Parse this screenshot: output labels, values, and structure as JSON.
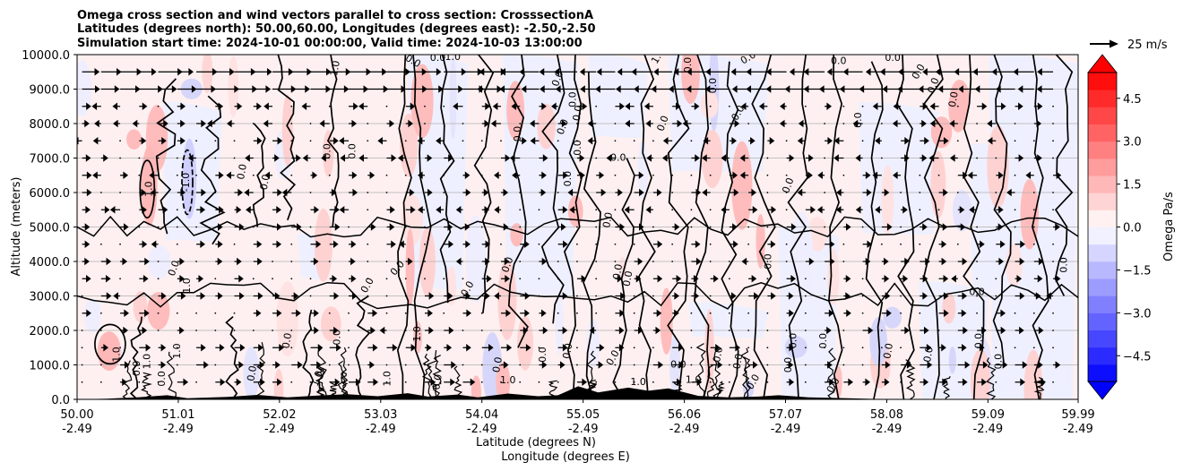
{
  "chart_data": {
    "type": "contour",
    "title_lines": [
      "Omega cross section and wind vectors parallel to cross section: CrosssectionA",
      "Latitudes (degrees north): 50.00,60.00, Longitudes (degrees east): -2.50,-2.50",
      "Simulation start time: 2024-10-01 00:00:00, Valid time: 2024-10-03 13:00:00"
    ],
    "ylabel": "Altitude (meters)",
    "xlabel_lines": [
      "Latitude (degrees N)",
      "Longitude (degrees E)"
    ],
    "ylim": [
      0,
      10000
    ],
    "yticks": [
      "0.0",
      "1000.0",
      "2000.0",
      "3000.0",
      "4000.0",
      "5000.0",
      "6000.0",
      "7000.0",
      "8000.0",
      "9000.0",
      "10000.0"
    ],
    "xlim": [
      50.0,
      59.99
    ],
    "xticks": [
      {
        "value": 50.0,
        "lat": "50.00",
        "lon": "-2.49"
      },
      {
        "value": 51.01,
        "lat": "51.01",
        "lon": "-2.49"
      },
      {
        "value": 52.02,
        "lat": "52.02",
        "lon": "-2.49"
      },
      {
        "value": 53.03,
        "lat": "53.03",
        "lon": "-2.49"
      },
      {
        "value": 54.04,
        "lat": "54.04",
        "lon": "-2.49"
      },
      {
        "value": 55.05,
        "lat": "55.05",
        "lon": "-2.49"
      },
      {
        "value": 56.06,
        "lat": "56.06",
        "lon": "-2.49"
      },
      {
        "value": 57.07,
        "lat": "57.07",
        "lon": "-2.49"
      },
      {
        "value": 58.08,
        "lat": "58.08",
        "lon": "-2.49"
      },
      {
        "value": 59.09,
        "lat": "59.09",
        "lon": "-2.49"
      },
      {
        "value": 59.99,
        "lat": "59.99",
        "lon": "-2.49"
      }
    ],
    "grid": "horizontal",
    "colorbar": {
      "label": "Omega Pa/s",
      "range": [
        -5.4,
        5.4
      ],
      "ticks": [
        "4.5",
        "3.0",
        "1.5",
        "0.0",
        "−1.5",
        "−3.0",
        "−4.5"
      ],
      "tick_values": [
        4.5,
        3.0,
        1.5,
        0.0,
        -1.5,
        -3.0,
        -4.5
      ],
      "extend": "both",
      "colormap": "bwr",
      "low_color": "#0000ff",
      "high_color": "#ff0000",
      "mid_color": "#ffffff"
    },
    "quiver_key": {
      "label": "25 m/s",
      "speed": 25
    },
    "contour_levels": [
      -1.0,
      0.0,
      1.0
    ],
    "contour_labels": [
      {
        "text": "1.0",
        "x": 50.72,
        "y": 6100,
        "rot": -90
      },
      {
        "text": "-1.0",
        "x": 51.09,
        "y": 6300,
        "rot": -90
      },
      {
        "text": "0.0",
        "x": 51.65,
        "y": 6600,
        "rot": -80
      },
      {
        "text": "0.0",
        "x": 51.88,
        "y": 6300,
        "rot": -80
      },
      {
        "text": "0.0",
        "x": 52.5,
        "y": 7200,
        "rot": -90
      },
      {
        "text": "0.0",
        "x": 52.75,
        "y": 7200,
        "rot": -90
      },
      {
        "text": "1.0",
        "x": 52.58,
        "y": 9600,
        "rot": -80
      },
      {
        "text": "0.0",
        "x": 53.35,
        "y": 9800,
        "rot": 30
      },
      {
        "text": "0.0",
        "x": 53.6,
        "y": 9900,
        "rot": 0
      },
      {
        "text": "1.0",
        "x": 53.75,
        "y": 9920,
        "rot": 0
      },
      {
        "text": "0.0",
        "x": 54.8,
        "y": 9300,
        "rot": -70
      },
      {
        "text": "0.0",
        "x": 54.95,
        "y": 8700,
        "rot": -90
      },
      {
        "text": "0.0",
        "x": 55.0,
        "y": 8300,
        "rot": -80
      },
      {
        "text": "0.0",
        "x": 54.85,
        "y": 7900,
        "rot": -70
      },
      {
        "text": "0.0",
        "x": 54.4,
        "y": 7700,
        "rot": -90
      },
      {
        "text": "0.0",
        "x": 55.4,
        "y": 7000,
        "rot": 0
      },
      {
        "text": "0.0",
        "x": 55.0,
        "y": 7300,
        "rot": -90
      },
      {
        "text": "0.0",
        "x": 54.9,
        "y": 6400,
        "rot": -90
      },
      {
        "text": "0.0",
        "x": 55.3,
        "y": 5200,
        "rot": -80
      },
      {
        "text": "0.0",
        "x": 56.1,
        "y": 9700,
        "rot": -90
      },
      {
        "text": "1.0",
        "x": 55.8,
        "y": 9950,
        "rot": -60
      },
      {
        "text": "0.0",
        "x": 56.35,
        "y": 9100,
        "rot": -90
      },
      {
        "text": "0.0",
        "x": 56.6,
        "y": 8300,
        "rot": -60
      },
      {
        "text": "0.0",
        "x": 55.85,
        "y": 8000,
        "rot": -70
      },
      {
        "text": "0.0",
        "x": 56.7,
        "y": 9900,
        "rot": -30
      },
      {
        "text": "0.0",
        "x": 57.6,
        "y": 9800,
        "rot": 0
      },
      {
        "text": "0.0",
        "x": 58.14,
        "y": 9900,
        "rot": 0
      },
      {
        "text": "0.0",
        "x": 58.4,
        "y": 9500,
        "rot": -60
      },
      {
        "text": "0.0",
        "x": 58.55,
        "y": 9100,
        "rot": -70
      },
      {
        "text": "0.0",
        "x": 58.75,
        "y": 8700,
        "rot": -80
      },
      {
        "text": "0.0",
        "x": 57.8,
        "y": 8100,
        "rot": -90
      },
      {
        "text": "0.0",
        "x": 57.1,
        "y": 6200,
        "rot": -70
      },
      {
        "text": "0.0",
        "x": 58.98,
        "y": 3100,
        "rot": 0
      },
      {
        "text": "0.0",
        "x": 56.9,
        "y": 4000,
        "rot": -90
      },
      {
        "text": "0.0",
        "x": 54.3,
        "y": 3900,
        "rot": -70
      },
      {
        "text": "0.0",
        "x": 53.9,
        "y": 3200,
        "rot": -60
      },
      {
        "text": "0.0",
        "x": 55.4,
        "y": 3700,
        "rot": -80
      },
      {
        "text": "0.0",
        "x": 55.5,
        "y": 3500,
        "rot": -80
      },
      {
        "text": "0.0",
        "x": 53.2,
        "y": 3800,
        "rot": -50
      },
      {
        "text": "0.0",
        "x": 52.9,
        "y": 3300,
        "rot": -60
      },
      {
        "text": "0.0",
        "x": 50.97,
        "y": 3800,
        "rot": -70
      },
      {
        "text": "1.0",
        "x": 51.1,
        "y": 3300,
        "rot": -90
      },
      {
        "text": "1.0",
        "x": 53.4,
        "y": 1900,
        "rot": -90
      },
      {
        "text": "0.0",
        "x": 52.6,
        "y": 1800,
        "rot": -90
      },
      {
        "text": "0.0",
        "x": 52.1,
        "y": 1700,
        "rot": -80
      },
      {
        "text": "1.0",
        "x": 51.0,
        "y": 1400,
        "rot": -90
      },
      {
        "text": "1.0",
        "x": 50.4,
        "y": 1300,
        "rot": -90
      },
      {
        "text": "1.0",
        "x": 50.7,
        "y": 1100,
        "rot": -90
      },
      {
        "text": "0.0",
        "x": 50.6,
        "y": 900,
        "rot": -90
      },
      {
        "text": "0.0",
        "x": 50.85,
        "y": 600,
        "rot": -90
      },
      {
        "text": "0.0",
        "x": 51.75,
        "y": 750,
        "rot": -80
      },
      {
        "text": "1.0",
        "x": 52.4,
        "y": 600,
        "rot": -70
      },
      {
        "text": "1.0",
        "x": 53.1,
        "y": 600,
        "rot": -90
      },
      {
        "text": "0.0",
        "x": 53.6,
        "y": 500,
        "rot": -80
      },
      {
        "text": "0.0",
        "x": 54.2,
        "y": 1000,
        "rot": -80
      },
      {
        "text": "0.0",
        "x": 54.65,
        "y": 1300,
        "rot": -90
      },
      {
        "text": "0.0",
        "x": 54.9,
        "y": 1400,
        "rot": -80
      },
      {
        "text": "0.0",
        "x": 55.35,
        "y": 1200,
        "rot": -60
      },
      {
        "text": "1.0",
        "x": 54.3,
        "y": 550,
        "rot": 0
      },
      {
        "text": "1.0",
        "x": 55.6,
        "y": 500,
        "rot": 0
      },
      {
        "text": "0.0",
        "x": 56.0,
        "y": 1000,
        "rot": 0
      },
      {
        "text": "1.0",
        "x": 56.15,
        "y": 560,
        "rot": 0
      },
      {
        "text": "0.0",
        "x": 56.4,
        "y": 1300,
        "rot": -80
      },
      {
        "text": "0.0",
        "x": 56.6,
        "y": 1100,
        "rot": -80
      },
      {
        "text": "0.0",
        "x": 57.15,
        "y": 1700,
        "rot": -90
      },
      {
        "text": "0.0",
        "x": 57.45,
        "y": 1700,
        "rot": -90
      },
      {
        "text": "0.0",
        "x": 57.1,
        "y": 1000,
        "rot": -90
      },
      {
        "text": "0.0",
        "x": 56.75,
        "y": 500,
        "rot": -60
      },
      {
        "text": "0.0",
        "x": 57.55,
        "y": 400,
        "rot": -60
      },
      {
        "text": "0.0",
        "x": 59.0,
        "y": 1700,
        "rot": -90
      },
      {
        "text": "0.0",
        "x": 59.2,
        "y": 1100,
        "rot": -90
      },
      {
        "text": "0.0",
        "x": 58.5,
        "y": 1300,
        "rot": -80
      },
      {
        "text": "0.0",
        "x": 58.1,
        "y": 1400,
        "rot": -80
      },
      {
        "text": "0.0",
        "x": 59.85,
        "y": 3900,
        "rot": -90
      }
    ]
  }
}
